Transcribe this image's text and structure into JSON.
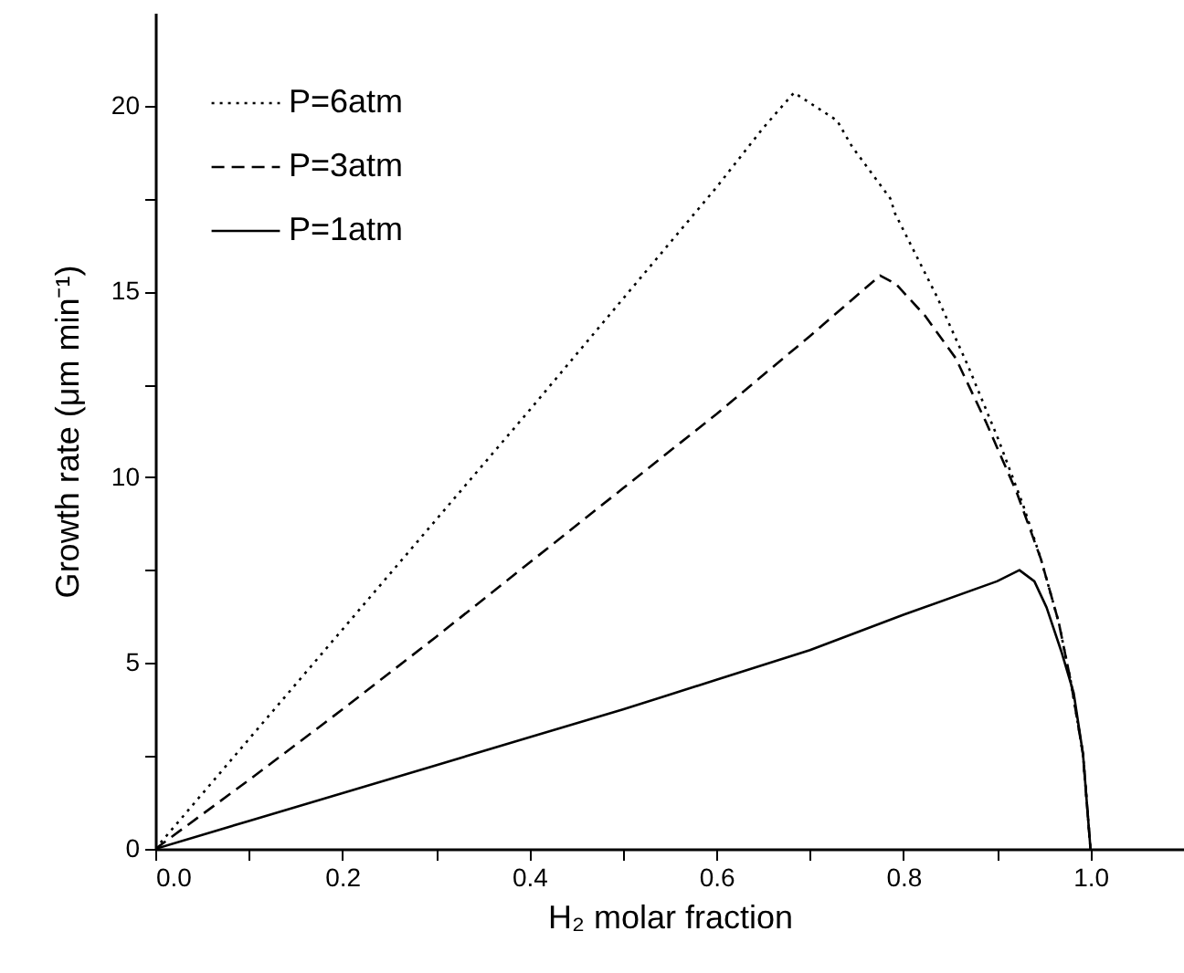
{
  "chart_data": {
    "type": "line",
    "xlabel": "H₂ molar fraction",
    "ylabel": "Growth rate (μm min⁻¹)",
    "xlim": [
      0,
      1.1
    ],
    "ylim": [
      0,
      22.5
    ],
    "xticks": [
      {
        "value": 0,
        "label": "0.0"
      },
      {
        "value": 0.1,
        "label": null
      },
      {
        "value": 0.2,
        "label": "0.2"
      },
      {
        "value": 0.3,
        "label": null
      },
      {
        "value": 0.4,
        "label": "0.4"
      },
      {
        "value": 0.5,
        "label": null
      },
      {
        "value": 0.6,
        "label": "0.6"
      },
      {
        "value": 0.7,
        "label": null
      },
      {
        "value": 0.8,
        "label": "0.8"
      },
      {
        "value": 0.9,
        "label": null
      },
      {
        "value": 1,
        "label": "1.0"
      }
    ],
    "yticks": [
      0,
      {
        "value": 2.5,
        "label": null
      },
      5,
      {
        "value": 7.5,
        "label": null
      },
      10,
      {
        "value": 12.5,
        "label": null
      },
      15,
      {
        "value": 17.5,
        "label": null
      },
      20
    ],
    "legend": "top left",
    "grid": false,
    "series": [
      {
        "name": "P=6atm",
        "color": "#000000",
        "line_style": "dotted",
        "x": [
          0,
          0.1,
          0.2,
          0.3,
          0.4,
          0.5,
          0.6,
          0.65,
          0.683,
          0.729,
          0.745,
          0.786,
          0.791,
          0.836,
          0.869,
          0.901,
          0.928,
          0.947,
          0.966,
          0.979,
          0.992,
          1.0
        ],
        "values": [
          0,
          2.95,
          5.9,
          8.85,
          11.8,
          14.8,
          17.8,
          19.4,
          20.35,
          19.6,
          18.9,
          17.5,
          17.1,
          14.85,
          13.0,
          11.05,
          9.25,
          7.8,
          6.1,
          4.5,
          2.55,
          0
        ]
      },
      {
        "name": "P=3atm",
        "color": "#000000",
        "line_style": "dashed",
        "x": [
          0,
          0.1,
          0.2,
          0.3,
          0.4,
          0.5,
          0.6,
          0.7,
          0.775,
          0.792,
          0.823,
          0.856,
          0.888,
          0.921,
          0.947,
          0.966,
          0.979,
          0.992,
          1.0
        ],
        "values": [
          0,
          1.85,
          3.75,
          5.7,
          7.7,
          9.7,
          11.7,
          13.8,
          15.43,
          15.2,
          14.35,
          13.2,
          11.5,
          9.6,
          7.8,
          6.1,
          4.5,
          2.55,
          0
        ]
      },
      {
        "name": "P=1atm",
        "color": "#000000",
        "line_style": "solid",
        "x": [
          0,
          0.1,
          0.2,
          0.3,
          0.4,
          0.5,
          0.6,
          0.7,
          0.8,
          0.9,
          0.924,
          0.94,
          0.953,
          0.969,
          0.982,
          0.992,
          1.0
        ],
        "values": [
          0,
          0.75,
          1.5,
          2.25,
          3.0,
          3.75,
          4.55,
          5.35,
          6.3,
          7.2,
          7.5,
          7.2,
          6.5,
          5.3,
          4.2,
          2.55,
          0
        ]
      }
    ]
  }
}
